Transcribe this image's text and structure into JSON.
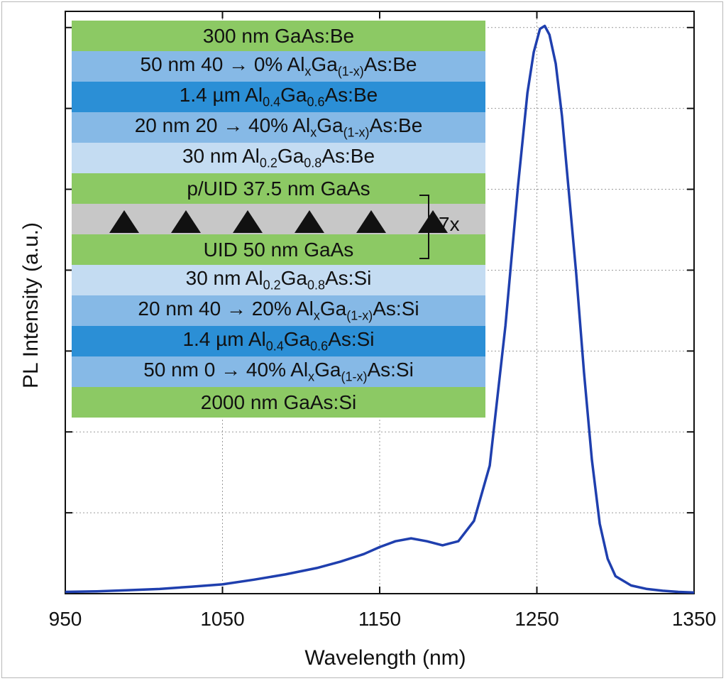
{
  "chart_data": {
    "type": "line",
    "xlabel": "Wavelength (nm)",
    "ylabel": "PL Intensity (a.u.)",
    "xlim": [
      950,
      1350
    ],
    "ylim": [
      0,
      1.0
    ],
    "x_ticks": [
      950,
      1050,
      1150,
      1250,
      1350
    ],
    "grid": "dotted",
    "line_color": "#1f3fae",
    "series": [
      {
        "x": [
          950,
          970,
          990,
          1010,
          1030,
          1050,
          1070,
          1090,
          1110,
          1125,
          1140,
          1150,
          1160,
          1170,
          1180,
          1190,
          1200,
          1210,
          1220,
          1230,
          1238,
          1244,
          1248,
          1252,
          1255,
          1258,
          1262,
          1266,
          1270,
          1275,
          1280,
          1285,
          1290,
          1295,
          1300,
          1310,
          1320,
          1330,
          1340,
          1350
        ],
        "y": [
          0.003,
          0.004,
          0.006,
          0.008,
          0.012,
          0.016,
          0.024,
          0.033,
          0.044,
          0.055,
          0.068,
          0.08,
          0.09,
          0.095,
          0.09,
          0.083,
          0.09,
          0.125,
          0.22,
          0.46,
          0.7,
          0.86,
          0.93,
          0.97,
          0.975,
          0.96,
          0.91,
          0.82,
          0.7,
          0.55,
          0.38,
          0.23,
          0.12,
          0.06,
          0.03,
          0.014,
          0.008,
          0.005,
          0.003,
          0.002
        ]
      }
    ]
  },
  "structure": {
    "repeat_label": "7x",
    "layers": [
      {
        "parts": [
          "300 nm GaAs:Be"
        ],
        "color": "#8cc964"
      },
      {
        "parts": [
          "50 nm 40 → 0% Al",
          {
            "sub": "x"
          },
          "Ga",
          {
            "sub": "(1-x)"
          },
          "As:Be"
        ],
        "color": "#86b9e6"
      },
      {
        "parts": [
          "1.4 µm Al",
          {
            "sub": "0.4"
          },
          "Ga",
          {
            "sub": "0.6"
          },
          "As:Be"
        ],
        "color": "#2b8fd6"
      },
      {
        "parts": [
          "20 nm 20 → 40% Al",
          {
            "sub": "x"
          },
          "Ga",
          {
            "sub": "(1-x)"
          },
          "As:Be"
        ],
        "color": "#86b9e6"
      },
      {
        "parts": [
          "30 nm Al",
          {
            "sub": "0.2"
          },
          "Ga",
          {
            "sub": "0.8"
          },
          "As:Be"
        ],
        "color": "#c4dcf2"
      },
      {
        "parts": [
          "p/UID 37.5 nm GaAs"
        ],
        "color": "#8cc964"
      },
      {
        "qd": 6,
        "color": "#c7c7c7"
      },
      {
        "parts": [
          "UID 50 nm GaAs"
        ],
        "color": "#8cc964"
      },
      {
        "parts": [
          "30 nm Al",
          {
            "sub": "0.2"
          },
          "Ga",
          {
            "sub": "0.8"
          },
          "As:Si"
        ],
        "color": "#c4dcf2"
      },
      {
        "parts": [
          "20 nm 40 → 20% Al",
          {
            "sub": "x"
          },
          "Ga",
          {
            "sub": "(1-x)"
          },
          "As:Si"
        ],
        "color": "#86b9e6"
      },
      {
        "parts": [
          "1.4 µm Al",
          {
            "sub": "0.4"
          },
          "Ga",
          {
            "sub": "0.6"
          },
          "As:Si"
        ],
        "color": "#2b8fd6"
      },
      {
        "parts": [
          "50 nm 0 → 40% Al",
          {
            "sub": "x"
          },
          "Ga",
          {
            "sub": "(1-x)"
          },
          "As:Si"
        ],
        "color": "#86b9e6"
      },
      {
        "parts": [
          "2000 nm GaAs:Si"
        ],
        "color": "#8cc964"
      }
    ]
  }
}
